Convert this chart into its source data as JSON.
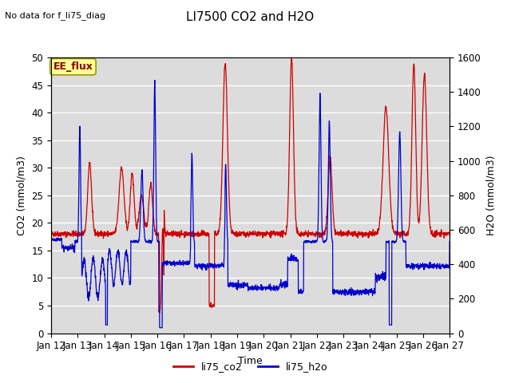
{
  "title": "LI7500 CO2 and H2O",
  "top_left_text": "No data for f_li75_diag",
  "box_label": "EE_flux",
  "xlabel": "Time",
  "ylabel_left": "CO2 (mmol/m3)",
  "ylabel_right": "H2O (mmol/m3)",
  "ylim_left": [
    0,
    50
  ],
  "ylim_right": [
    0,
    1600
  ],
  "x_tick_labels": [
    "Jan 12",
    "Jan 13",
    "Jan 14",
    "Jan 15",
    "Jan 16",
    "Jan 17",
    "Jan 18",
    "Jan 19",
    "Jan 20",
    "Jan 21",
    "Jan 22",
    "Jan 23",
    "Jan 24",
    "Jan 25",
    "Jan 26",
    "Jan 27"
  ],
  "legend_labels": [
    "li75_co2",
    "li75_h2o"
  ],
  "line_colors": [
    "#cc0000",
    "#0000cc"
  ],
  "plot_bg_color": "#dcdcdc",
  "grid_color": "#ffffff",
  "title_fontsize": 11,
  "axis_fontsize": 9,
  "tick_fontsize": 8.5,
  "annot_fontsize": 8
}
